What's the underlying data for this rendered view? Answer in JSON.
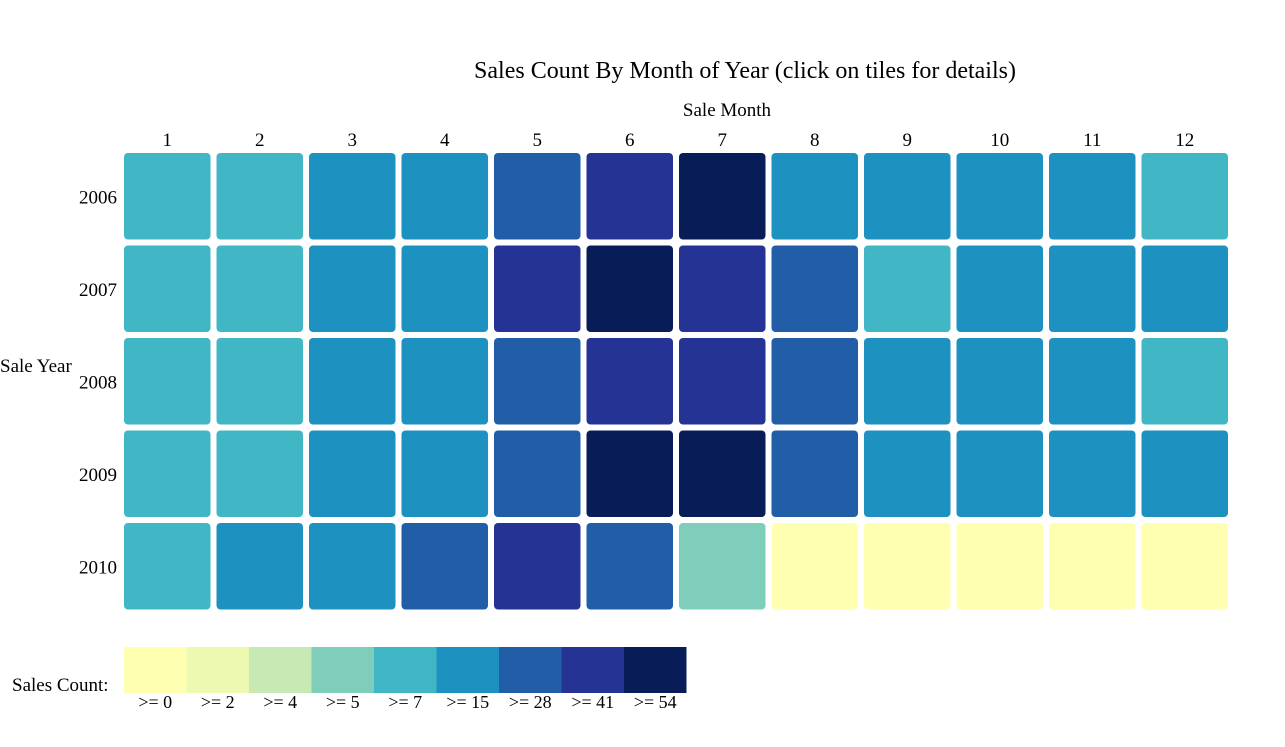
{
  "chart_data": {
    "type": "heatmap",
    "title": "Sales Count By Month of Year (click on tiles for details)",
    "xlabel": "Sale Month",
    "ylabel": "Sale Year",
    "x": [
      "1",
      "2",
      "3",
      "4",
      "5",
      "6",
      "7",
      "8",
      "9",
      "10",
      "11",
      "12"
    ],
    "y": [
      "2006",
      "2007",
      "2008",
      "2009",
      "2010"
    ],
    "value_bins": [
      [
        7,
        7,
        15,
        15,
        28,
        41,
        54,
        15,
        15,
        15,
        15,
        7
      ],
      [
        7,
        7,
        15,
        15,
        41,
        54,
        41,
        28,
        7,
        15,
        15,
        15
      ],
      [
        7,
        7,
        15,
        15,
        28,
        41,
        41,
        28,
        15,
        15,
        15,
        7
      ],
      [
        7,
        7,
        15,
        15,
        28,
        54,
        54,
        28,
        15,
        15,
        15,
        15
      ],
      [
        7,
        15,
        15,
        28,
        41,
        28,
        5,
        0,
        0,
        0,
        0,
        0
      ]
    ],
    "legend": {
      "title": "Sales Count:",
      "thresholds": [
        0,
        2,
        4,
        5,
        7,
        15,
        28,
        41,
        54
      ],
      "labels": [
        ">= 0",
        ">= 2",
        ">= 4",
        ">= 5",
        ">= 7",
        ">= 15",
        ">= 28",
        ">= 41",
        ">= 54"
      ],
      "colors": [
        "#ffffb2",
        "#edf8b1",
        "#c7e9b4",
        "#7fcdbb",
        "#41b6c4",
        "#1d91c0",
        "#225ea8",
        "#253494",
        "#081d58"
      ]
    }
  }
}
